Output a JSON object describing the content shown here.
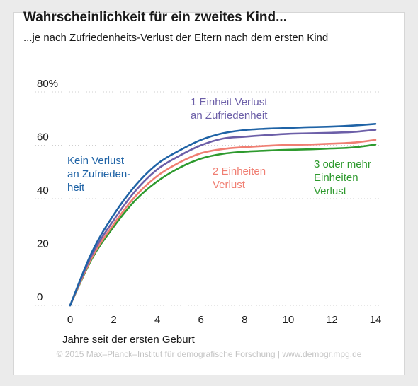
{
  "chart_data": {
    "type": "line",
    "title": "Wahrscheinlichkeit für ein zweites Kind...",
    "subtitle": "...je nach Zufriedenheits-Verlust der Eltern nach dem ersten Kind",
    "xlabel": "Jahre seit der ersten Geburt",
    "ylabel": "",
    "xlim": [
      0,
      14
    ],
    "ylim": [
      0,
      80
    ],
    "x_ticks": [
      0,
      2,
      4,
      6,
      8,
      10,
      12,
      14
    ],
    "y_ticks": [
      0,
      20,
      40,
      60,
      80
    ],
    "y_tick_labels": [
      "0",
      "20",
      "40",
      "60",
      "80%"
    ],
    "grid": "horizontal-dotted",
    "x": [
      0,
      1,
      2,
      3,
      4,
      5,
      6,
      7,
      8,
      9,
      10,
      11,
      12,
      13,
      14
    ],
    "series": [
      {
        "name": "Kein Verlust an Zufriedenheit",
        "label_lines": [
          "Kein Verlust",
          "an Zufrieden-",
          "heit"
        ],
        "color": "#1f63a6",
        "values": [
          0,
          20,
          34,
          45,
          53,
          58,
          62,
          64.5,
          65.7,
          66.2,
          66.5,
          66.8,
          67,
          67.4,
          68
        ]
      },
      {
        "name": "1 Einheit Verlust an Zufriedenheit",
        "label_lines": [
          "1 Einheit Verlust",
          "an Zufriedenheit"
        ],
        "color": "#6c5fa8",
        "values": [
          0,
          19,
          32,
          43,
          51,
          56,
          60,
          62.5,
          63.2,
          63.8,
          64.3,
          64.5,
          64.7,
          65,
          65.8
        ]
      },
      {
        "name": "2 Einheiten Verlust",
        "label_lines": [
          "2 Einheiten",
          "Verlust"
        ],
        "color": "#f07e72",
        "values": [
          0,
          18,
          30.5,
          41,
          48.5,
          53.5,
          57,
          58.6,
          59.3,
          59.8,
          60.1,
          60.3,
          60.6,
          61,
          62
        ]
      },
      {
        "name": "3 oder mehr Einheiten Verlust",
        "label_lines": [
          "3 oder mehr",
          "Einheiten",
          "Verlust"
        ],
        "color": "#2e9a2e",
        "values": [
          0,
          17.5,
          29.5,
          39.5,
          46.5,
          51.5,
          55,
          56.8,
          57.6,
          58,
          58.3,
          58.5,
          58.8,
          59.2,
          60.3
        ]
      }
    ]
  },
  "footer": "© 2015 Max–Planck–Institut für demografische Forschung | www.demogr.mpg.de"
}
